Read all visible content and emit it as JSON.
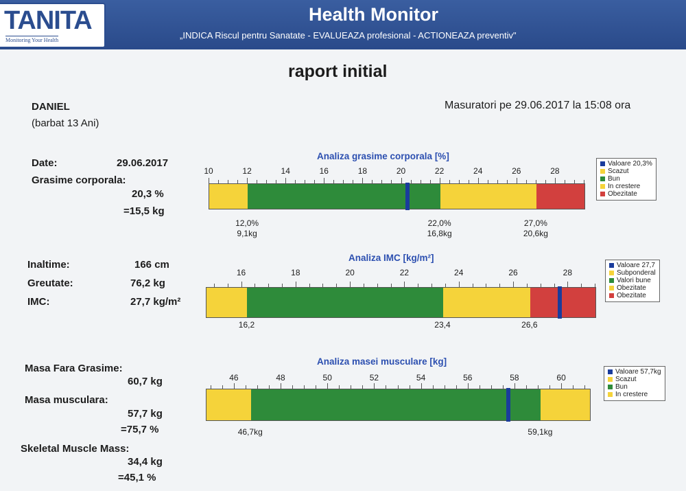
{
  "header": {
    "logo": "TANITA",
    "logo_tagline": "Monitoring Your Health",
    "title": "Health Monitor",
    "subtitle": "„INDICA Riscul pentru Sanatate - EVALUEAZA profesional - ACTIONEAZA preventiv\""
  },
  "report_title": "raport initial",
  "person": {
    "name": "DANIEL",
    "details": "(barbat 13 Ani)"
  },
  "measurement_info": "Masuratori pe 29.06.2017 la 15:08 ora",
  "left": {
    "date_label": "Date:",
    "date_value": "29.06.2017",
    "fat_label": "Grasime corporala:",
    "fat_percent": "20,3 %",
    "fat_kg": "=15,5 kg",
    "height_label": "Inaltime:",
    "height_value": "166 cm",
    "weight_label": "Greutate:",
    "weight_value": "76,2 kg",
    "bmi_label": "IMC:",
    "bmi_value": "27,7 kg/m²",
    "ffm_label": "Masa Fara Grasime:",
    "ffm_value": "60,7 kg",
    "muscle_label": "Masa musculara:",
    "muscle_kg": "57,7 kg",
    "muscle_pct": "=75,7 %",
    "skeletal_label": "Skeletal Muscle Mass:",
    "skeletal_kg": "34,4 kg",
    "skeletal_pct": "=45,1 %"
  },
  "colors": {
    "blue": "#1a3c9c",
    "yellow": "#f5d33a",
    "green": "#2e8b3a",
    "red": "#d2403e"
  },
  "charts": [
    {
      "title": "Analiza grasime corporala [%]",
      "min": 10,
      "max": 29.5,
      "step": 0.5,
      "labels": [
        "10",
        "12",
        "14",
        "16",
        "18",
        "20",
        "22",
        "24",
        "26",
        "28"
      ],
      "segments": [
        {
          "to": 12,
          "color": "yellow"
        },
        {
          "to": 22,
          "color": "green"
        },
        {
          "to": 27,
          "color": "yellow"
        },
        {
          "to": 29.5,
          "color": "red"
        }
      ],
      "marker": 20.3,
      "thresholds": [
        {
          "x": 12,
          "line1": "12,0%",
          "line2": "9,1kg"
        },
        {
          "x": 22,
          "line1": "22,0%",
          "line2": "16,8kg"
        },
        {
          "x": 27,
          "line1": "27,0%",
          "line2": "20,6kg"
        }
      ],
      "legend": [
        {
          "color": "blue",
          "text": "Valoare 20,3%"
        },
        {
          "color": "yellow",
          "text": "Scazut"
        },
        {
          "color": "green",
          "text": "Bun"
        },
        {
          "color": "yellow",
          "text": "In crestere"
        },
        {
          "color": "red",
          "text": "Obezitate"
        }
      ]
    },
    {
      "title": "Analiza IMC [kg/m²]",
      "min": 14.7,
      "max": 29,
      "step": 0.5,
      "labels": [
        "16",
        "18",
        "20",
        "22",
        "24",
        "26",
        "28"
      ],
      "segments": [
        {
          "to": 16.2,
          "color": "yellow"
        },
        {
          "to": 23.4,
          "color": "green"
        },
        {
          "to": 26.6,
          "color": "yellow"
        },
        {
          "to": 29,
          "color": "red"
        }
      ],
      "marker": 27.7,
      "thresholds": [
        {
          "x": 16.2,
          "line1": "16,2",
          "line2": ""
        },
        {
          "x": 23.4,
          "line1": "23,4",
          "line2": ""
        },
        {
          "x": 26.6,
          "line1": "26,6",
          "line2": ""
        }
      ],
      "legend": [
        {
          "color": "blue",
          "text": "Valoare 27,7"
        },
        {
          "color": "yellow",
          "text": "Subponderal"
        },
        {
          "color": "green",
          "text": "Valori bune"
        },
        {
          "color": "yellow",
          "text": "Obezitate"
        },
        {
          "color": "red",
          "text": "Obezitate"
        }
      ]
    },
    {
      "title": "Analiza masei musculare [kg]",
      "min": 44.8,
      "max": 61.2,
      "step": 0.5,
      "labels": [
        "46",
        "48",
        "50",
        "52",
        "54",
        "56",
        "58",
        "60"
      ],
      "segments": [
        {
          "to": 46.7,
          "color": "yellow"
        },
        {
          "to": 59.1,
          "color": "green"
        },
        {
          "to": 61.2,
          "color": "yellow"
        }
      ],
      "marker": 57.7,
      "thresholds": [
        {
          "x": 46.7,
          "line1": "46,7kg",
          "line2": ""
        },
        {
          "x": 59.1,
          "line1": "59,1kg",
          "line2": ""
        }
      ],
      "legend": [
        {
          "color": "blue",
          "text": "Valoare 57,7kg"
        },
        {
          "color": "yellow",
          "text": "Scazut"
        },
        {
          "color": "green",
          "text": "Bun"
        },
        {
          "color": "yellow",
          "text": "In crestere"
        }
      ]
    }
  ]
}
